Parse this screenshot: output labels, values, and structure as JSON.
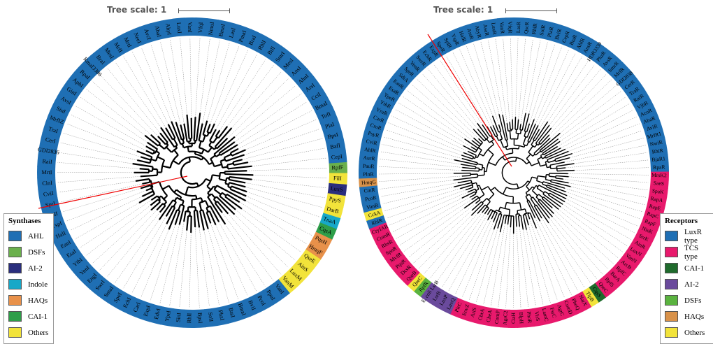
{
  "left": {
    "scale_label": "Tree scale: 1",
    "legend_title": "Synthases",
    "legend": [
      {
        "label": "AHL",
        "color": "#1f6fb4"
      },
      {
        "label": "DSFs",
        "color": "#6ab04c"
      },
      {
        "label": "AI-2",
        "color": "#2a2e7d"
      },
      {
        "label": "Indole",
        "color": "#17a8c8"
      },
      {
        "label": "HAQs",
        "color": "#e8914a"
      },
      {
        "label": "CAI-1",
        "color": "#2e9e49"
      },
      {
        "label": "Others",
        "color": "#f2e33a"
      }
    ],
    "leaves": [
      {
        "label": "RpfF",
        "group": "DSFs"
      },
      {
        "label": "FilI",
        "group": "Others"
      },
      {
        "label": "LuxS",
        "group": "AI-2"
      },
      {
        "label": "PpyS",
        "group": "Others"
      },
      {
        "label": "DarB",
        "group": "Others"
      },
      {
        "label": "TnaA",
        "group": "Indole"
      },
      {
        "label": "CqsA",
        "group": "CAI-1"
      },
      {
        "label": "PqsH",
        "group": "HAQs"
      },
      {
        "label": "HmqF",
        "group": "HAQs"
      },
      {
        "label": "QseE",
        "group": "Others"
      },
      {
        "label": "AinS",
        "group": "Others"
      },
      {
        "label": "LuxM",
        "group": "Others"
      },
      {
        "label": "VanM",
        "group": "Others"
      },
      {
        "label": "VanI",
        "group": "AHL"
      },
      {
        "label": "PpuI",
        "group": "AHL"
      },
      {
        "label": "PcoI",
        "group": "AHL"
      },
      {
        "label": "BviI",
        "group": "AHL"
      },
      {
        "label": "BmaI",
        "group": "AHL"
      },
      {
        "label": "BtaI",
        "group": "AHL"
      },
      {
        "label": "PhzI",
        "group": "AHL"
      },
      {
        "label": "SolI",
        "group": "AHL"
      },
      {
        "label": "BpsI",
        "group": "AHL"
      },
      {
        "label": "RhlI",
        "group": "AHL"
      },
      {
        "label": "SinI",
        "group": "AHL"
      },
      {
        "label": "YpeI",
        "group": "AHL"
      },
      {
        "label": "EdvI",
        "group": "AHL"
      },
      {
        "label": "ExpI",
        "group": "AHL"
      },
      {
        "label": "CarI",
        "group": "AHL"
      },
      {
        "label": "EchI",
        "group": "AHL"
      },
      {
        "label": "SpeI",
        "group": "AHL"
      },
      {
        "label": "SmaI",
        "group": "AHL"
      },
      {
        "label": "SwrI",
        "group": "AHL"
      },
      {
        "label": "EngI",
        "group": "AHL"
      },
      {
        "label": "YenI",
        "group": "AHL"
      },
      {
        "label": "YtbI",
        "group": "AHL"
      },
      {
        "label": "EsaI",
        "group": "AHL"
      },
      {
        "label": "EanI",
        "group": "AHL"
      },
      {
        "label": "HalI",
        "group": "AHL"
      },
      {
        "label": "YspI",
        "group": "AHL"
      },
      {
        "label": "SplI",
        "group": "AHL"
      },
      {
        "label": "SprI",
        "group": "AHL"
      },
      {
        "label": "CviI",
        "group": "AHL"
      },
      {
        "label": "CinI",
        "group": "AHL"
      },
      {
        "label": "MrtI",
        "group": "AHL"
      },
      {
        "label": "RaiI",
        "group": "AHL"
      },
      {
        "label": "GDI2836",
        "group": "AHL"
      },
      {
        "label": "CerI",
        "group": "AHL"
      },
      {
        "label": "TraI",
        "group": "AHL"
      },
      {
        "label": "MrfIZ",
        "group": "AHL"
      },
      {
        "label": "SinI",
        "group": "AHL"
      },
      {
        "label": "AvsI",
        "group": "AHL"
      },
      {
        "label": "GinI",
        "group": "AHL"
      },
      {
        "label": "AphI",
        "group": "AHL"
      },
      {
        "label": "RpaI",
        "group": "AHL"
      },
      {
        "label": "RmaI3386",
        "group": "AHL"
      },
      {
        "label": "BraI",
        "group": "AHL"
      },
      {
        "label": "MesI",
        "group": "AHL"
      },
      {
        "label": "MrfI",
        "group": "AHL"
      },
      {
        "label": "MrtI",
        "group": "AHL"
      },
      {
        "label": "NeeI",
        "group": "AHL"
      },
      {
        "label": "AvcI",
        "group": "AHL"
      },
      {
        "label": "AbaI",
        "group": "AHL"
      },
      {
        "label": "AhyI",
        "group": "AHL"
      },
      {
        "label": "LuxI",
        "group": "AHL"
      },
      {
        "label": "VanI",
        "group": "AHL"
      },
      {
        "label": "VfqI",
        "group": "AHL"
      },
      {
        "label": "NmuI",
        "group": "AHL"
      },
      {
        "label": "BmaI",
        "group": "AHL"
      },
      {
        "label": "LasI",
        "group": "AHL"
      },
      {
        "label": "PmaI",
        "group": "AHL"
      },
      {
        "label": "BraI",
        "group": "AHL"
      },
      {
        "label": "RhlI",
        "group": "AHL"
      },
      {
        "label": "BtlI",
        "group": "AHL"
      },
      {
        "label": "SmrI",
        "group": "AHL"
      },
      {
        "label": "MesI",
        "group": "AHL"
      },
      {
        "label": "AnsI",
        "group": "AHL"
      },
      {
        "label": "AhnI",
        "group": "AHL"
      },
      {
        "label": "ArsI",
        "group": "AHL"
      },
      {
        "label": "CciI",
        "group": "AHL"
      },
      {
        "label": "BmaI",
        "group": "AHL"
      },
      {
        "label": "TofI",
        "group": "AHL"
      },
      {
        "label": "PlaI",
        "group": "AHL"
      },
      {
        "label": "BpsI",
        "group": "AHL"
      },
      {
        "label": "BafI",
        "group": "AHL"
      },
      {
        "label": "CepI",
        "group": "AHL"
      }
    ]
  },
  "right": {
    "scale_label": "Tree scale: 1",
    "legend_title": "Receptors",
    "legend": [
      {
        "label": "LuxR type",
        "color": "#1f6fb4"
      },
      {
        "label": "TCS type",
        "color": "#e8196c"
      },
      {
        "label": "CAI-1",
        "color": "#1f6b2c"
      },
      {
        "label": "AI-2",
        "color": "#6a4a9c"
      },
      {
        "label": "DSFs",
        "color": "#5ab33f"
      },
      {
        "label": "HAQs",
        "color": "#d9924a"
      },
      {
        "label": "Others",
        "color": "#f2e33a"
      }
    ],
    "leaves": [
      {
        "label": "MrsK2",
        "group": "TCS type"
      },
      {
        "label": "SaeS",
        "group": "TCS type"
      },
      {
        "label": "SpaK",
        "group": "TCS type"
      },
      {
        "label": "RapA",
        "group": "TCS type"
      },
      {
        "label": "RapE",
        "group": "TCS type"
      },
      {
        "label": "RapC",
        "group": "TCS type"
      },
      {
        "label": "RapF",
        "group": "TCS type"
      },
      {
        "label": "NisK",
        "group": "TCS type"
      },
      {
        "label": "SrrK",
        "group": "TCS type"
      },
      {
        "label": "AinR",
        "group": "TCS type"
      },
      {
        "label": "LuxN",
        "group": "TCS type"
      },
      {
        "label": "VanN",
        "group": "TCS type"
      },
      {
        "label": "ArcB",
        "group": "TCS type"
      },
      {
        "label": "RpfC",
        "group": "TCS type"
      },
      {
        "label": "BarA",
        "group": "TCS type"
      },
      {
        "label": "RpfS",
        "group": "TCS type"
      },
      {
        "label": "QseC",
        "group": "TCS type"
      },
      {
        "label": "CqsS",
        "group": "CAI-1"
      },
      {
        "label": "TlpB",
        "group": "Others"
      },
      {
        "label": "NarX",
        "group": "TCS type"
      },
      {
        "label": "PhoQ",
        "group": "TCS type"
      },
      {
        "label": "ComD",
        "group": "TCS type"
      },
      {
        "label": "AgrC",
        "group": "TCS type"
      },
      {
        "label": "FsrC",
        "group": "TCS type"
      },
      {
        "label": "LamC",
        "group": "TCS type"
      },
      {
        "label": "VirS",
        "group": "TCS type"
      },
      {
        "label": "PhoR",
        "group": "TCS type"
      },
      {
        "label": "BlpH",
        "group": "TCS type"
      },
      {
        "label": "CiaH",
        "group": "TCS type"
      },
      {
        "label": "AgrC2",
        "group": "TCS type"
      },
      {
        "label": "ComP",
        "group": "TCS type"
      },
      {
        "label": "CheA",
        "group": "TCS type"
      },
      {
        "label": "CbrA",
        "group": "TCS type"
      },
      {
        "label": "ArlS",
        "group": "TCS type"
      },
      {
        "label": "EnvZ",
        "group": "TCS type"
      },
      {
        "label": "PleC",
        "group": "TCS type"
      },
      {
        "label": "LuxQ",
        "group": "AI-2"
      },
      {
        "label": "LuxP",
        "group": "AI-2"
      },
      {
        "label": "LsrB",
        "group": "AI-2"
      },
      {
        "label": "E. coli LsrB",
        "group": "AI-2"
      },
      {
        "label": "RpfR",
        "group": "DSFs"
      },
      {
        "label": "QseC",
        "group": "Others"
      },
      {
        "label": "QseB",
        "group": "TCS type"
      },
      {
        "label": "DcsR",
        "group": "TCS type"
      },
      {
        "label": "PqsR",
        "group": "TCS type"
      },
      {
        "label": "MvfR",
        "group": "TCS type"
      },
      {
        "label": "SpnR",
        "group": "TCS type"
      },
      {
        "label": "RhsR",
        "group": "TCS type"
      },
      {
        "label": "ComR",
        "group": "TCS type"
      },
      {
        "label": "CryIAR",
        "group": "TCS type"
      },
      {
        "label": "RhlR",
        "group": "LuxR type"
      },
      {
        "label": "CckA",
        "group": "Others"
      },
      {
        "label": "VanR",
        "group": "LuxR type"
      },
      {
        "label": "PcoR",
        "group": "LuxR type"
      },
      {
        "label": "CinR",
        "group": "LuxR type"
      },
      {
        "label": "HmqG",
        "group": "HAQs"
      },
      {
        "label": "PlnR",
        "group": "LuxR type"
      },
      {
        "label": "PauR",
        "group": "LuxR type"
      },
      {
        "label": "AurR",
        "group": "LuxR type"
      },
      {
        "label": "AhlR",
        "group": "LuxR type"
      },
      {
        "label": "CviR",
        "group": "LuxR type"
      },
      {
        "label": "PsyR",
        "group": "LuxR type"
      },
      {
        "label": "CroR",
        "group": "LuxR type"
      },
      {
        "label": "CarR",
        "group": "LuxR type"
      },
      {
        "label": "YruR",
        "group": "LuxR type"
      },
      {
        "label": "YtbR",
        "group": "LuxR type"
      },
      {
        "label": "YpeR",
        "group": "LuxR type"
      },
      {
        "label": "EsaR",
        "group": "LuxR type"
      },
      {
        "label": "EanR",
        "group": "LuxR type"
      },
      {
        "label": "SdiA",
        "group": "LuxR type"
      },
      {
        "label": "SprR",
        "group": "LuxR type"
      },
      {
        "label": "YenR",
        "group": "LuxR type"
      },
      {
        "label": "SwrR",
        "group": "LuxR type"
      },
      {
        "label": "EchR",
        "group": "LuxR type"
      },
      {
        "label": "ExpR",
        "group": "LuxR type"
      },
      {
        "label": "SpeR",
        "group": "LuxR type"
      },
      {
        "label": "SplR",
        "group": "LuxR type"
      },
      {
        "label": "YspR",
        "group": "LuxR type"
      },
      {
        "label": "HalR",
        "group": "LuxR type"
      },
      {
        "label": "ArsR",
        "group": "LuxR type"
      },
      {
        "label": "AhyR",
        "group": "LuxR type"
      },
      {
        "label": "AsaR",
        "group": "LuxR type"
      },
      {
        "label": "LuxR",
        "group": "LuxR type"
      },
      {
        "label": "VanR",
        "group": "LuxR type"
      },
      {
        "label": "VfqR",
        "group": "LuxR type"
      },
      {
        "label": "LasR",
        "group": "LuxR type"
      },
      {
        "label": "QscR",
        "group": "LuxR type"
      },
      {
        "label": "RhlR",
        "group": "LuxR type"
      },
      {
        "label": "SolR",
        "group": "LuxR type"
      },
      {
        "label": "PlaR",
        "group": "LuxR type"
      },
      {
        "label": "BviR",
        "group": "LuxR type"
      },
      {
        "label": "CepR",
        "group": "LuxR type"
      },
      {
        "label": "BtaR",
        "group": "LuxR type"
      },
      {
        "label": "AhlR",
        "group": "LuxR type"
      },
      {
        "label": "AnsR",
        "group": "LuxR type"
      },
      {
        "label": "HDR3339",
        "group": "LuxR type"
      },
      {
        "label": "PhzR",
        "group": "LuxR type"
      },
      {
        "label": "AvsR",
        "group": "LuxR type"
      },
      {
        "label": "SmrR",
        "group": "LuxR type"
      },
      {
        "label": "MrfR",
        "group": "LuxR type"
      },
      {
        "label": "GDI2838",
        "group": "LuxR type"
      },
      {
        "label": "CerR",
        "group": "LuxR type"
      },
      {
        "label": "TraR",
        "group": "LuxR type"
      },
      {
        "label": "RaiR",
        "group": "LuxR type"
      },
      {
        "label": "VjbR",
        "group": "LuxR type"
      },
      {
        "label": "AcoR",
        "group": "LuxR type"
      },
      {
        "label": "AbaR",
        "group": "LuxR type"
      },
      {
        "label": "AviR",
        "group": "LuxR type"
      },
      {
        "label": "MrfR1",
        "group": "LuxR type"
      },
      {
        "label": "NwiR",
        "group": "LuxR type"
      },
      {
        "label": "RhiR",
        "group": "LuxR type"
      },
      {
        "label": "BjaR1",
        "group": "LuxR type"
      },
      {
        "label": "RpaR",
        "group": "LuxR type"
      }
    ]
  }
}
